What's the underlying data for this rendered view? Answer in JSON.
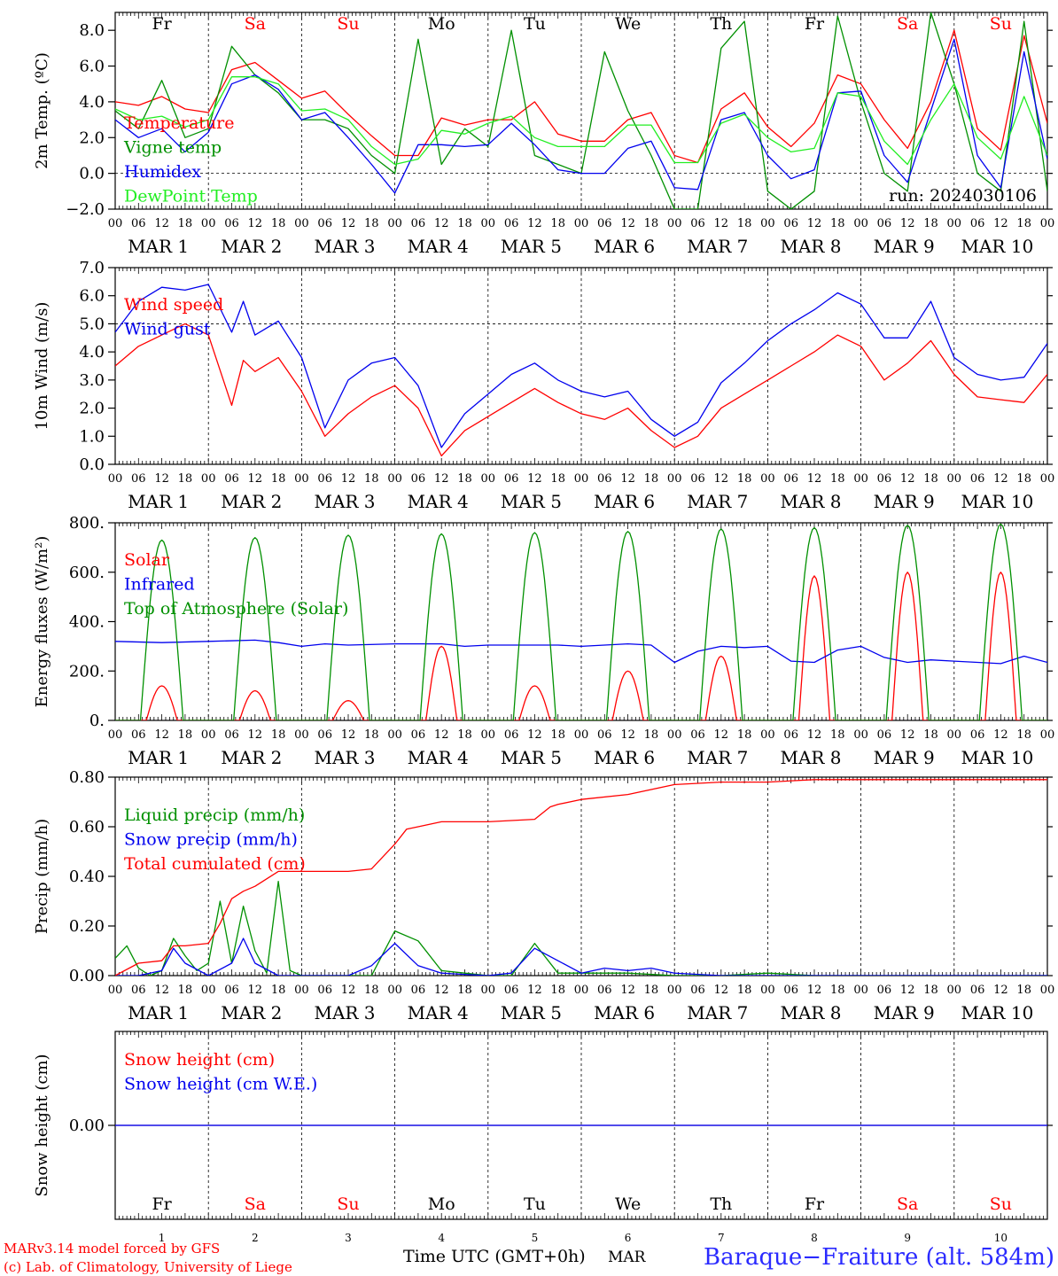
{
  "colors": {
    "red": "#ff0000",
    "green": "#009000",
    "blue": "#0000ee",
    "lightgreen": "#22ee22",
    "purple": "#7a2a9a",
    "axis": "#000000",
    "grid": "#000000"
  },
  "x_axis": {
    "hour_labels": [
      "00",
      "06",
      "12",
      "18"
    ],
    "end_label": "00",
    "date_labels": [
      "MAR  1",
      "MAR  2",
      "MAR  3",
      "MAR  4",
      "MAR  5",
      "MAR  6",
      "MAR  7",
      "MAR  8",
      "MAR  9",
      "MAR 10"
    ],
    "day_names": [
      {
        "label": "Fr",
        "color": "#000000"
      },
      {
        "label": "Sa",
        "color": "#ff0000"
      },
      {
        "label": "Su",
        "color": "#ff0000"
      },
      {
        "label": "Mo",
        "color": "#000000"
      },
      {
        "label": "Tu",
        "color": "#000000"
      },
      {
        "label": "We",
        "color": "#000000"
      },
      {
        "label": "Th",
        "color": "#000000"
      },
      {
        "label": "Fr",
        "color": "#000000"
      },
      {
        "label": "Sa",
        "color": "#ff0000"
      },
      {
        "label": "Su",
        "color": "#ff0000"
      }
    ],
    "day_numbers": [
      "1",
      "2",
      "3",
      "4",
      "5",
      "6",
      "7",
      "8",
      "9",
      "10"
    ]
  },
  "footer": {
    "model_line1": "MARv3.14 model forced by GFS",
    "model_line2": "(c) Lab. of Climatology, University of Liege",
    "time_label": "Time UTC (GMT+0h)",
    "month": "MAR",
    "station": "Baraque−Fraiture (alt. 584m)"
  },
  "chart_data": [
    {
      "type": "line",
      "ylabel": "2m Temp. (ºC)",
      "ylim": [
        -2,
        9
      ],
      "yticks": [
        -2,
        0,
        2,
        4,
        6,
        8
      ],
      "ytick_labels": [
        "−2.0",
        "0.0",
        "2.0",
        "4.0",
        "6.0",
        "8.0"
      ],
      "hlines": [
        0
      ],
      "annotation": "run: 2024030106",
      "x_unit": "hours since MAR 1 00 UTC",
      "series": [
        {
          "name": "Temperature",
          "color": "#ff0000",
          "x": [
            0,
            6,
            12,
            18,
            24,
            30,
            36,
            42,
            48,
            54,
            60,
            66,
            72,
            78,
            84,
            90,
            96,
            102,
            108,
            114,
            120,
            126,
            132,
            138,
            144,
            150,
            156,
            162,
            168,
            174,
            180,
            186,
            192,
            198,
            204,
            210,
            216,
            222,
            228,
            234,
            240
          ],
          "y": [
            4.0,
            3.8,
            4.3,
            3.6,
            3.4,
            5.8,
            6.2,
            5.2,
            4.2,
            4.6,
            3.3,
            2.1,
            1.0,
            1.0,
            3.1,
            2.7,
            3.0,
            3.0,
            4.0,
            2.2,
            1.8,
            1.8,
            3.0,
            3.4,
            1.0,
            0.6,
            3.6,
            4.5,
            2.6,
            1.5,
            2.8,
            5.5,
            5.0,
            3.0,
            1.4,
            4.0,
            8.0,
            2.5,
            1.3,
            7.7,
            2.8
          ]
        },
        {
          "name": "Vigne temp",
          "color": "#009000",
          "x": [
            0,
            6,
            12,
            18,
            24,
            30,
            36,
            42,
            48,
            54,
            60,
            66,
            72,
            78,
            84,
            90,
            96,
            102,
            108,
            114,
            120,
            126,
            132,
            138,
            144,
            150,
            156,
            162,
            168,
            174,
            180,
            186,
            192,
            198,
            204,
            210,
            216,
            222,
            228,
            234,
            240
          ],
          "y": [
            3.5,
            2.5,
            5.2,
            2.0,
            2.5,
            7.1,
            5.5,
            4.5,
            3.0,
            3.0,
            2.5,
            1.0,
            0.0,
            7.5,
            0.5,
            2.5,
            1.5,
            8.0,
            1.0,
            0.5,
            0.0,
            6.8,
            3.5,
            1.0,
            -2.0,
            -2.0,
            7.0,
            8.5,
            -1.0,
            -2.0,
            -1.0,
            8.8,
            4.0,
            0.0,
            -1.0,
            9.0,
            5.0,
            0.0,
            -1.0,
            8.5,
            -1.0
          ]
        },
        {
          "name": "Humidex",
          "color": "#0000ee",
          "x": [
            0,
            6,
            12,
            18,
            24,
            30,
            36,
            42,
            48,
            54,
            60,
            66,
            72,
            78,
            84,
            90,
            96,
            102,
            108,
            114,
            120,
            126,
            132,
            138,
            144,
            150,
            156,
            162,
            168,
            174,
            180,
            186,
            192,
            198,
            204,
            210,
            216,
            222,
            228,
            234,
            240
          ],
          "y": [
            3.0,
            2.0,
            2.5,
            1.2,
            2.3,
            5.0,
            5.5,
            4.7,
            3.0,
            3.4,
            2.0,
            0.5,
            -1.1,
            1.6,
            1.6,
            1.5,
            1.6,
            2.8,
            1.6,
            0.2,
            0.0,
            0.0,
            1.4,
            1.8,
            -0.8,
            -0.9,
            3.0,
            3.4,
            1.0,
            -0.3,
            0.2,
            4.5,
            4.6,
            1.0,
            -0.5,
            3.5,
            7.5,
            1.0,
            -0.8,
            6.8,
            0.8
          ]
        },
        {
          "name": "DewPoint Temp",
          "color": "#22ee22",
          "x": [
            0,
            6,
            12,
            18,
            24,
            30,
            36,
            42,
            48,
            54,
            60,
            66,
            72,
            78,
            84,
            90,
            96,
            102,
            108,
            114,
            120,
            126,
            132,
            138,
            144,
            150,
            156,
            162,
            168,
            174,
            180,
            186,
            192,
            198,
            204,
            210,
            216,
            222,
            228,
            234,
            240
          ],
          "y": [
            3.6,
            3.0,
            3.2,
            2.6,
            3.0,
            5.4,
            5.4,
            5.0,
            3.5,
            3.6,
            3.0,
            1.5,
            0.5,
            0.8,
            2.4,
            2.2,
            2.8,
            3.2,
            2.0,
            1.5,
            1.5,
            1.5,
            2.7,
            2.7,
            0.6,
            0.6,
            2.8,
            3.3,
            2.0,
            1.2,
            1.4,
            4.5,
            4.3,
            1.8,
            0.5,
            3.0,
            5.0,
            2.0,
            0.8,
            4.3,
            1.0
          ]
        }
      ],
      "legend": [
        "Temperature",
        "Vigne temp",
        "Humidex",
        "DewPoint Temp"
      ]
    },
    {
      "type": "line",
      "ylabel": "10m Wind (m/s)",
      "ylim": [
        0,
        7
      ],
      "yticks": [
        0,
        1,
        2,
        3,
        4,
        5,
        6,
        7
      ],
      "ytick_labels": [
        "0.0",
        "1.0",
        "2.0",
        "3.0",
        "4.0",
        "5.0",
        "6.0",
        "7.0"
      ],
      "hlines": [
        5
      ],
      "x_unit": "hours since MAR 1 00 UTC",
      "series": [
        {
          "name": "Wind speed",
          "color": "#ff0000",
          "x": [
            0,
            6,
            12,
            18,
            24,
            30,
            33,
            36,
            42,
            48,
            54,
            60,
            66,
            72,
            78,
            84,
            90,
            96,
            102,
            108,
            114,
            120,
            126,
            132,
            138,
            144,
            150,
            156,
            162,
            168,
            174,
            180,
            186,
            192,
            198,
            204,
            210,
            216,
            222,
            228,
            234,
            240
          ],
          "y": [
            3.5,
            4.2,
            4.6,
            5.0,
            4.6,
            2.1,
            3.7,
            3.3,
            3.8,
            2.6,
            1.0,
            1.8,
            2.4,
            2.8,
            2.0,
            0.3,
            1.2,
            1.7,
            2.2,
            2.7,
            2.2,
            1.8,
            1.6,
            2.0,
            1.2,
            0.6,
            1.0,
            2.0,
            2.5,
            3.0,
            3.5,
            4.0,
            4.6,
            4.2,
            3.0,
            3.6,
            4.4,
            3.2,
            2.4,
            2.3,
            2.2,
            3.2
          ]
        },
        {
          "name": "Wind gust",
          "color": "#0000ee",
          "x": [
            0,
            6,
            12,
            18,
            24,
            30,
            33,
            36,
            42,
            48,
            54,
            60,
            66,
            72,
            78,
            84,
            90,
            96,
            102,
            108,
            114,
            120,
            126,
            132,
            138,
            144,
            150,
            156,
            162,
            168,
            174,
            180,
            186,
            192,
            198,
            204,
            210,
            216,
            222,
            228,
            234,
            240
          ],
          "y": [
            4.7,
            5.8,
            6.3,
            6.2,
            6.4,
            4.7,
            5.8,
            4.6,
            5.1,
            3.8,
            1.3,
            3.0,
            3.6,
            3.8,
            2.8,
            0.6,
            1.8,
            2.5,
            3.2,
            3.6,
            3.0,
            2.6,
            2.4,
            2.6,
            1.6,
            1.0,
            1.5,
            2.9,
            3.6,
            4.4,
            5.0,
            5.5,
            6.1,
            5.7,
            4.5,
            4.5,
            5.8,
            3.8,
            3.2,
            3.0,
            3.1,
            4.3
          ]
        }
      ],
      "legend": [
        "Wind speed",
        "Wind gust"
      ]
    },
    {
      "type": "line",
      "ylabel": "Energy fluxes (W/m²)",
      "ylim": [
        0,
        800
      ],
      "yticks": [
        0,
        200,
        400,
        600,
        800
      ],
      "ytick_labels": [
        "0.",
        "200.",
        "400.",
        "600.",
        "800."
      ],
      "hlines": [],
      "x_unit": "hours since MAR 1 00 UTC",
      "diurnal": {
        "day_start_hour": 6.5,
        "day_end_hour": 17.5,
        "toa_peaks": [
          730,
          740,
          750,
          755,
          760,
          765,
          775,
          780,
          790,
          795
        ],
        "solar_peaks": [
          140,
          120,
          80,
          300,
          140,
          200,
          260,
          585,
          600,
          600
        ]
      },
      "series": [
        {
          "name": "Solar",
          "color": "#ff0000",
          "computed": true
        },
        {
          "name": "Infrared",
          "color": "#0000ee",
          "x": [
            0,
            12,
            24,
            36,
            42,
            48,
            54,
            60,
            72,
            84,
            90,
            96,
            108,
            114,
            120,
            132,
            138,
            144,
            150,
            156,
            162,
            168,
            174,
            180,
            186,
            192,
            198,
            204,
            210,
            216,
            222,
            228,
            234,
            240
          ],
          "y": [
            320,
            315,
            320,
            325,
            315,
            300,
            310,
            305,
            310,
            310,
            300,
            305,
            305,
            305,
            300,
            310,
            305,
            235,
            280,
            300,
            295,
            300,
            240,
            235,
            285,
            300,
            255,
            235,
            245,
            240,
            235,
            230,
            260,
            235
          ]
        },
        {
          "name": "Top of Atmosphere (Solar)",
          "color": "#009000",
          "computed": true
        }
      ],
      "legend": [
        "Solar",
        "Infrared",
        "Top of Atmosphere (Solar)"
      ]
    },
    {
      "type": "line",
      "ylabel": "Precip (mm/h)",
      "ylim": [
        0,
        0.8
      ],
      "yticks": [
        0,
        0.2,
        0.4,
        0.6,
        0.8
      ],
      "ytick_labels": [
        "0.00",
        "0.20",
        "0.40",
        "0.60",
        "0.80"
      ],
      "hlines": [],
      "x_unit": "hours since MAR 1 00 UTC",
      "series": [
        {
          "name": "Liquid precip (mm/h)",
          "color": "#009000",
          "x": [
            0,
            3,
            6,
            9,
            12,
            15,
            18,
            21,
            24,
            27,
            30,
            33,
            36,
            39,
            42,
            45,
            48,
            54,
            60,
            66,
            72,
            78,
            84,
            90,
            96,
            102,
            108,
            114,
            120,
            132,
            144,
            156,
            168,
            180,
            192,
            204,
            216,
            228,
            240
          ],
          "y": [
            0.07,
            0.12,
            0.03,
            0.0,
            0.02,
            0.15,
            0.08,
            0.02,
            0.05,
            0.3,
            0.05,
            0.28,
            0.1,
            0.01,
            0.38,
            0.02,
            0.0,
            0.0,
            0.0,
            0.0,
            0.18,
            0.14,
            0.02,
            0.01,
            0.0,
            0.0,
            0.13,
            0.01,
            0.01,
            0.01,
            0.0,
            0.0,
            0.01,
            0.0,
            0.0,
            0.0,
            0.0,
            0.0,
            0.0
          ]
        },
        {
          "name": "Snow precip (mm/h)",
          "color": "#0000ee",
          "x": [
            0,
            6,
            12,
            15,
            18,
            24,
            30,
            33,
            36,
            42,
            48,
            60,
            66,
            72,
            78,
            84,
            96,
            102,
            108,
            114,
            120,
            126,
            132,
            138,
            144,
            156,
            168,
            180,
            192,
            204,
            216,
            228,
            240
          ],
          "y": [
            0.0,
            0.0,
            0.02,
            0.11,
            0.05,
            0.0,
            0.05,
            0.15,
            0.05,
            0.0,
            0.0,
            0.0,
            0.04,
            0.13,
            0.04,
            0.01,
            0.0,
            0.01,
            0.11,
            0.06,
            0.01,
            0.03,
            0.02,
            0.03,
            0.01,
            0.0,
            0.0,
            0.0,
            0.0,
            0.0,
            0.0,
            0.0,
            0.0
          ]
        },
        {
          "name": "Total cumulated (cm)",
          "color": "#ff0000",
          "x": [
            0,
            6,
            12,
            15,
            18,
            24,
            27,
            30,
            33,
            36,
            42,
            48,
            54,
            60,
            66,
            72,
            75,
            78,
            84,
            96,
            108,
            112,
            114,
            120,
            132,
            144,
            156,
            168,
            180,
            192,
            204,
            216,
            228,
            240
          ],
          "y": [
            0.0,
            0.05,
            0.06,
            0.12,
            0.12,
            0.13,
            0.21,
            0.31,
            0.34,
            0.36,
            0.42,
            0.42,
            0.42,
            0.42,
            0.43,
            0.53,
            0.59,
            0.6,
            0.62,
            0.62,
            0.63,
            0.68,
            0.69,
            0.71,
            0.73,
            0.77,
            0.78,
            0.78,
            0.79,
            0.79,
            0.79,
            0.79,
            0.79,
            0.79
          ]
        }
      ],
      "legend": [
        "Liquid precip (mm/h)",
        "Snow precip (mm/h)",
        "Total cumulated (cm)"
      ]
    },
    {
      "type": "line",
      "ylabel": "Snow height (cm)",
      "ylim": [
        -1,
        1
      ],
      "yticks": [
        0
      ],
      "ytick_labels": [
        "0.00"
      ],
      "hlines": [],
      "x_unit": "hours since MAR 1 00 UTC",
      "series": [
        {
          "name": "Snow height (cm)",
          "color": "#ff0000",
          "x": [
            0,
            240
          ],
          "y": [
            0,
            0
          ]
        },
        {
          "name": "Snow height (cm W.E.)",
          "color": "#0000ee",
          "x": [
            0,
            240
          ],
          "y": [
            0,
            0
          ]
        }
      ],
      "legend": [
        "Snow height (cm)",
        "Snow height (cm W.E.)"
      ]
    }
  ]
}
